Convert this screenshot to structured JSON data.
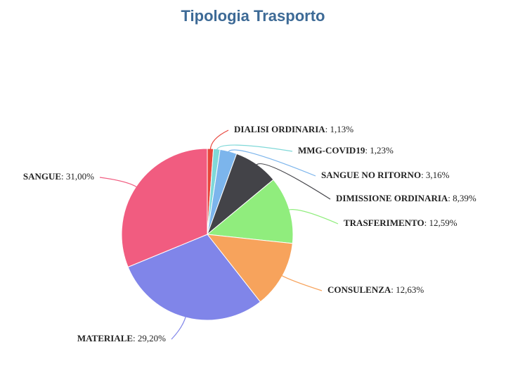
{
  "chart_data": {
    "type": "pie",
    "title": "Tipologia Trasporto",
    "categories": [
      "DIALISI ORDINARIA",
      "MMG-COVID19",
      "SANGUE NO RITORNO",
      "DIMISSIONE ORDINARIA",
      "TRASFERIMENTO",
      "CONSULENZA",
      "MATERIALE",
      "SANGUE"
    ],
    "values": [
      1.13,
      1.23,
      3.16,
      8.39,
      12.59,
      12.63,
      29.2,
      31.0
    ],
    "value_labels": [
      ": 1,13%",
      ": 1,23%",
      ": 3,16%",
      ": 8,39%",
      ": 12,59%",
      ": 12,63%",
      ": 29,20%",
      ": 31,00%"
    ],
    "colors": [
      "#e8453c",
      "#7fd8d8",
      "#7cb5ec",
      "#434348",
      "#90ed7d",
      "#f7a35c",
      "#8085e9",
      "#f15c80"
    ]
  }
}
